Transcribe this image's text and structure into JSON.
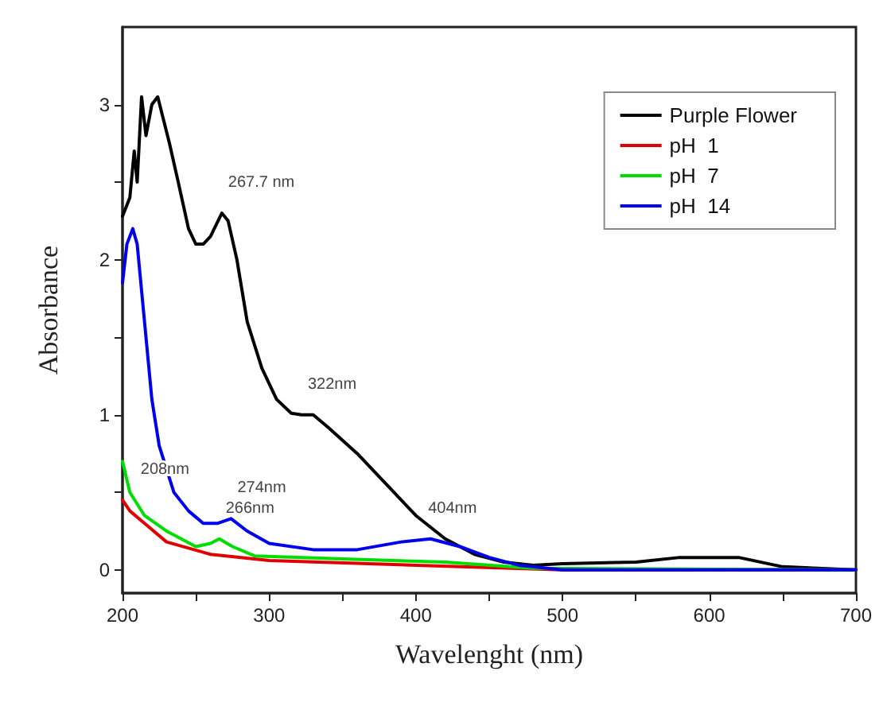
{
  "chart_data": {
    "type": "line",
    "xlabel": "Wavelenght (nm)",
    "ylabel": "Absorbance",
    "xlim": [
      200,
      700
    ],
    "xticks": [
      200,
      {
        "value": 250,
        "label": null
      },
      300,
      {
        "value": 350,
        "label": null
      },
      400,
      {
        "value": 450,
        "label": null
      },
      500,
      {
        "value": 550,
        "label": null
      },
      600,
      {
        "value": 650,
        "label": null
      },
      700
    ],
    "ylim": [
      -0.15,
      3.5
    ],
    "yticks": [
      0,
      {
        "value": 0.5,
        "label": null
      },
      1,
      {
        "value": 1.5,
        "label": null
      },
      2,
      {
        "value": 2.5,
        "label": null
      },
      3
    ],
    "grid": false,
    "legend": "top right",
    "marker": "none",
    "line_style": "solid",
    "series": [
      {
        "name": "Purple Flower",
        "color": "#000000",
        "x": [
          200,
          205,
          208,
          210,
          213,
          216,
          220,
          224,
          228,
          232,
          238,
          245,
          250,
          255,
          260,
          267.7,
          272,
          278,
          285,
          295,
          305,
          315,
          322,
          330,
          340,
          360,
          380,
          400,
          420,
          440,
          460,
          480,
          500,
          550,
          580,
          620,
          650,
          700
        ],
        "values": [
          2.28,
          2.4,
          2.7,
          2.5,
          3.05,
          2.8,
          3.0,
          3.05,
          2.9,
          2.75,
          2.5,
          2.2,
          2.1,
          2.1,
          2.15,
          2.3,
          2.25,
          2.0,
          1.6,
          1.3,
          1.1,
          1.01,
          1.0,
          1.0,
          0.92,
          0.75,
          0.55,
          0.35,
          0.2,
          0.1,
          0.05,
          0.03,
          0.04,
          0.05,
          0.08,
          0.08,
          0.02,
          0.0
        ]
      },
      {
        "name": "pH  1",
        "color": "#e00000",
        "x": [
          200,
          205,
          215,
          230,
          260,
          300,
          400,
          500,
          700
        ],
        "values": [
          0.45,
          0.38,
          0.3,
          0.18,
          0.1,
          0.06,
          0.03,
          0.0,
          0.0
        ]
      },
      {
        "name": "pH  7",
        "color": "#00dd00",
        "x": [
          200,
          205,
          215,
          230,
          250,
          260,
          266,
          275,
          290,
          350,
          420,
          480,
          700
        ],
        "values": [
          0.7,
          0.5,
          0.35,
          0.25,
          0.15,
          0.17,
          0.2,
          0.15,
          0.09,
          0.07,
          0.05,
          0.01,
          0.0
        ]
      },
      {
        "name": "pH  14",
        "color": "#0000ee",
        "x": [
          200,
          203,
          207,
          210,
          215,
          220,
          225,
          235,
          245,
          255,
          265,
          274,
          285,
          300,
          330,
          360,
          390,
          410,
          430,
          450,
          470,
          500,
          700
        ],
        "values": [
          1.85,
          2.1,
          2.2,
          2.1,
          1.6,
          1.1,
          0.8,
          0.5,
          0.38,
          0.3,
          0.3,
          0.33,
          0.25,
          0.17,
          0.13,
          0.13,
          0.18,
          0.2,
          0.15,
          0.08,
          0.03,
          0.0,
          0.0
        ]
      }
    ],
    "annotations": [
      {
        "text": "267.7 nm",
        "x": 267.7,
        "y": 2.3
      },
      {
        "text": "322nm",
        "x": 322,
        "y": 1.0
      },
      {
        "text": "208nm",
        "x": 208,
        "y": 0.45
      },
      {
        "text": "274nm",
        "x": 274,
        "y": 0.33
      },
      {
        "text": "266nm",
        "x": 266,
        "y": 0.2
      },
      {
        "text": "404nm",
        "x": 404,
        "y": 0.2
      }
    ]
  }
}
